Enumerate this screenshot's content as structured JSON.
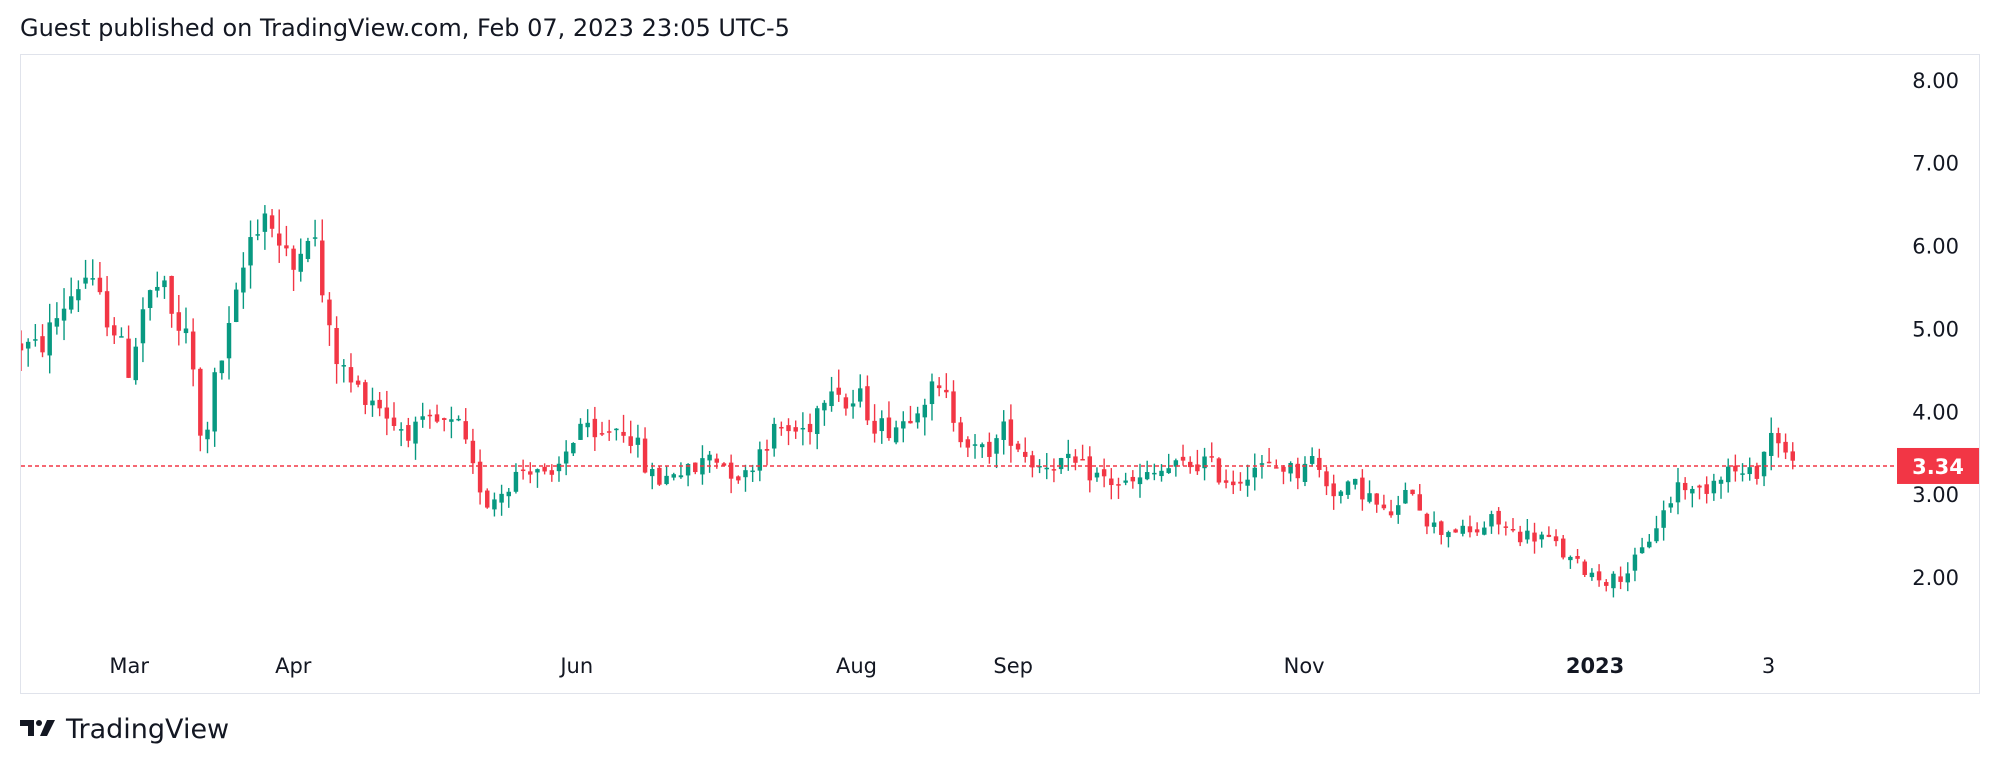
{
  "header": {
    "publish_text": "Guest published on TradingView.com, Feb 07, 2023 23:05 UTC-5"
  },
  "footer": {
    "brand": "TradingView",
    "logo_icon": "tradingview-logo-icon"
  },
  "colors": {
    "up": "#089981",
    "down": "#f23645",
    "grid": "#e0e3eb",
    "text": "#131722",
    "last_price_line": "#f23645"
  },
  "chart_data": {
    "type": "candlestick",
    "title": "",
    "ylim": [
      1.3,
      8.3
    ],
    "y_ticks": [
      "8.00",
      "7.00",
      "6.00",
      "5.00",
      "4.00",
      "3.00",
      "2.00"
    ],
    "x_ticks": [
      {
        "label": "Mar",
        "t": 0.058,
        "bold": false
      },
      {
        "label": "Apr",
        "t": 0.146,
        "bold": false
      },
      {
        "label": "Jun",
        "t": 0.298,
        "bold": false
      },
      {
        "label": "Aug",
        "t": 0.448,
        "bold": false
      },
      {
        "label": "Sep",
        "t": 0.532,
        "bold": false
      },
      {
        "label": "Nov",
        "t": 0.688,
        "bold": false
      },
      {
        "label": "2023",
        "t": 0.844,
        "bold": true
      },
      {
        "label": "3",
        "t": 0.937,
        "bold": false
      }
    ],
    "last_price": 3.34,
    "last_price_label": "3.34",
    "keypoints": [
      [
        0.0,
        4.8
      ],
      [
        0.01,
        4.75
      ],
      [
        0.022,
        5.25
      ],
      [
        0.034,
        5.65
      ],
      [
        0.05,
        5.0
      ],
      [
        0.058,
        4.5
      ],
      [
        0.066,
        5.3
      ],
      [
        0.075,
        5.55
      ],
      [
        0.082,
        5.05
      ],
      [
        0.088,
        4.95
      ],
      [
        0.094,
        4.3
      ],
      [
        0.097,
        3.4
      ],
      [
        0.103,
        4.3
      ],
      [
        0.11,
        4.8
      ],
      [
        0.118,
        5.6
      ],
      [
        0.124,
        6.2
      ],
      [
        0.132,
        6.45
      ],
      [
        0.138,
        6.0
      ],
      [
        0.146,
        5.7
      ],
      [
        0.152,
        6.3
      ],
      [
        0.158,
        6.0
      ],
      [
        0.164,
        5.0
      ],
      [
        0.17,
        4.6
      ],
      [
        0.178,
        4.3
      ],
      [
        0.19,
        4.15
      ],
      [
        0.2,
        3.85
      ],
      [
        0.21,
        3.75
      ],
      [
        0.22,
        3.85
      ],
      [
        0.235,
        3.8
      ],
      [
        0.242,
        3.3
      ],
      [
        0.25,
        2.9
      ],
      [
        0.258,
        3.05
      ],
      [
        0.268,
        3.3
      ],
      [
        0.276,
        3.35
      ],
      [
        0.284,
        3.1
      ],
      [
        0.292,
        3.5
      ],
      [
        0.3,
        3.85
      ],
      [
        0.308,
        3.6
      ],
      [
        0.316,
        3.8
      ],
      [
        0.324,
        3.8
      ],
      [
        0.33,
        3.6
      ],
      [
        0.336,
        3.25
      ],
      [
        0.344,
        3.15
      ],
      [
        0.35,
        3.3
      ],
      [
        0.36,
        3.25
      ],
      [
        0.37,
        3.5
      ],
      [
        0.38,
        3.3
      ],
      [
        0.388,
        3.2
      ],
      [
        0.396,
        3.55
      ],
      [
        0.406,
        3.8
      ],
      [
        0.414,
        3.75
      ],
      [
        0.422,
        3.8
      ],
      [
        0.43,
        4.2
      ],
      [
        0.436,
        4.45
      ],
      [
        0.442,
        4.05
      ],
      [
        0.45,
        4.15
      ],
      [
        0.458,
        3.85
      ],
      [
        0.466,
        3.8
      ],
      [
        0.474,
        3.9
      ],
      [
        0.48,
        4.1
      ],
      [
        0.488,
        4.25
      ],
      [
        0.496,
        4.15
      ],
      [
        0.504,
        3.75
      ],
      [
        0.512,
        3.5
      ],
      [
        0.52,
        3.55
      ],
      [
        0.528,
        3.8
      ],
      [
        0.536,
        3.55
      ],
      [
        0.544,
        3.35
      ],
      [
        0.554,
        3.4
      ],
      [
        0.564,
        3.35
      ],
      [
        0.574,
        3.25
      ],
      [
        0.584,
        3.15
      ],
      [
        0.594,
        3.1
      ],
      [
        0.604,
        3.2
      ],
      [
        0.614,
        3.3
      ],
      [
        0.626,
        3.35
      ],
      [
        0.636,
        3.4
      ],
      [
        0.644,
        3.2
      ],
      [
        0.652,
        3.15
      ],
      [
        0.66,
        3.35
      ],
      [
        0.668,
        3.3
      ],
      [
        0.676,
        3.35
      ],
      [
        0.684,
        3.25
      ],
      [
        0.69,
        3.5
      ],
      [
        0.698,
        3.2
      ],
      [
        0.706,
        3.0
      ],
      [
        0.716,
        3.1
      ],
      [
        0.724,
        2.95
      ],
      [
        0.73,
        2.75
      ],
      [
        0.738,
        2.8
      ],
      [
        0.746,
        3.1
      ],
      [
        0.752,
        2.75
      ],
      [
        0.76,
        2.55
      ],
      [
        0.768,
        2.6
      ],
      [
        0.776,
        2.5
      ],
      [
        0.784,
        2.6
      ],
      [
        0.79,
        2.7
      ],
      [
        0.798,
        2.55
      ],
      [
        0.806,
        2.5
      ],
      [
        0.814,
        2.5
      ],
      [
        0.822,
        2.4
      ],
      [
        0.83,
        2.2
      ],
      [
        0.838,
        2.1
      ],
      [
        0.846,
        2.0
      ],
      [
        0.852,
        1.95
      ],
      [
        0.86,
        2.05
      ],
      [
        0.868,
        2.25
      ],
      [
        0.876,
        2.6
      ],
      [
        0.884,
        2.9
      ],
      [
        0.89,
        3.2
      ],
      [
        0.896,
        3.0
      ],
      [
        0.904,
        3.1
      ],
      [
        0.912,
        3.3
      ],
      [
        0.918,
        3.3
      ],
      [
        0.924,
        3.2
      ],
      [
        0.93,
        3.25
      ],
      [
        0.936,
        3.6
      ],
      [
        0.94,
        3.8
      ],
      [
        0.946,
        3.5
      ],
      [
        0.95,
        3.34
      ]
    ]
  }
}
